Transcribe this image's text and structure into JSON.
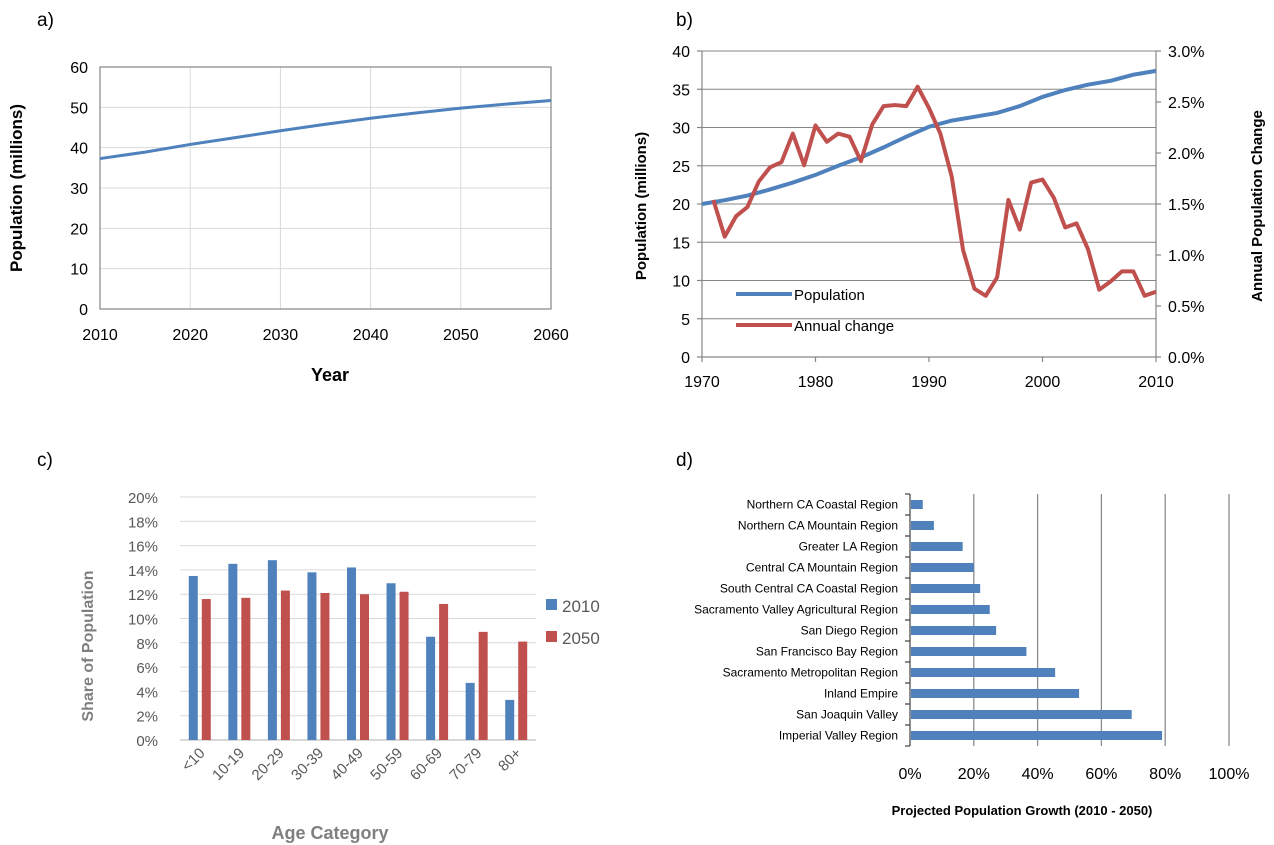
{
  "panels": [
    "a)",
    "b)",
    "c)",
    "d)"
  ],
  "chart_data": [
    {
      "type": "line",
      "xlabel": "Year",
      "ylabel": "Population (millions)",
      "xlim": [
        2010,
        2060
      ],
      "ylim": [
        0,
        60
      ],
      "x_ticks": [
        "2010",
        "2020",
        "2030",
        "2040",
        "2050",
        "2060"
      ],
      "y_ticks": [
        "0",
        "10",
        "20",
        "30",
        "40",
        "50",
        "60"
      ],
      "grid": "major both",
      "series": [
        {
          "color": "#4f81bd",
          "x": [
            2010,
            2015,
            2020,
            2025,
            2030,
            2035,
            2040,
            2045,
            2050,
            2055,
            2060
          ],
          "values": [
            37.3,
            38.9,
            40.8,
            42.5,
            44.2,
            45.8,
            47.3,
            48.6,
            49.8,
            50.8,
            51.7
          ]
        }
      ]
    },
    {
      "type": "line",
      "ylabel": "Population (millions)",
      "ylabel_right": "Annual Population Change",
      "xlim": [
        1970,
        2010
      ],
      "ylim": [
        0,
        40
      ],
      "ylim_right": [
        0,
        3
      ],
      "x_ticks": [
        "1970",
        "1980",
        "1990",
        "2000",
        "2010"
      ],
      "y_ticks": [
        "0",
        "5",
        "10",
        "15",
        "20",
        "25",
        "30",
        "35",
        "40"
      ],
      "y_ticks_right": [
        "0.0%",
        "0.5%",
        "1.0%",
        "1.5%",
        "2.0%",
        "2.5%",
        "3.0%"
      ],
      "legend_position": "lower-left",
      "series": [
        {
          "name": "Population",
          "axis": "left",
          "color": "#4f81bd",
          "x": [
            1970,
            1972,
            1974,
            1976,
            1978,
            1980,
            1982,
            1984,
            1986,
            1988,
            1990,
            1992,
            1994,
            1996,
            1998,
            2000,
            2002,
            2004,
            2006,
            2008,
            2010
          ],
          "values": [
            20.0,
            20.5,
            21.1,
            21.9,
            22.8,
            23.8,
            25.0,
            26.1,
            27.4,
            28.8,
            30.1,
            30.9,
            31.4,
            31.9,
            32.8,
            34.0,
            34.9,
            35.6,
            36.1,
            36.9,
            37.4
          ]
        },
        {
          "name": "Annual change",
          "axis": "right",
          "color": "#c0504d",
          "x": [
            1971,
            1972,
            1973,
            1974,
            1975,
            1976,
            1977,
            1978,
            1979,
            1980,
            1981,
            1982,
            1983,
            1984,
            1985,
            1986,
            1987,
            1988,
            1989,
            1990,
            1991,
            1992,
            1993,
            1994,
            1995,
            1996,
            1997,
            1998,
            1999,
            2000,
            2001,
            2002,
            2003,
            2004,
            2005,
            2006,
            2007,
            2008,
            2009,
            2010
          ],
          "values": [
            0.0154,
            0.0118,
            0.0138,
            0.0147,
            0.0172,
            0.0186,
            0.0191,
            0.0219,
            0.0188,
            0.0227,
            0.0211,
            0.0219,
            0.0216,
            0.0192,
            0.0228,
            0.0246,
            0.0247,
            0.0246,
            0.0265,
            0.0244,
            0.0219,
            0.0177,
            0.0105,
            0.0067,
            0.006,
            0.0078,
            0.0154,
            0.0125,
            0.0171,
            0.0174,
            0.0156,
            0.0127,
            0.0131,
            0.0106,
            0.0066,
            0.0074,
            0.0084,
            0.0084,
            0.006,
            0.0064
          ]
        }
      ]
    },
    {
      "type": "bar",
      "xlabel": "Age Category",
      "ylabel": "Share of Population",
      "ylim": [
        0,
        0.2
      ],
      "y_ticks": [
        "0%",
        "2%",
        "4%",
        "6%",
        "8%",
        "10%",
        "12%",
        "14%",
        "16%",
        "18%",
        "20%"
      ],
      "categories": [
        "<10",
        "10-19",
        "20-29",
        "30-39",
        "40-49",
        "50-59",
        "60-69",
        "70-79",
        "80+"
      ],
      "legend_position": "right",
      "series": [
        {
          "name": "2010",
          "color": "#4f81bd",
          "values": [
            0.135,
            0.145,
            0.148,
            0.138,
            0.142,
            0.129,
            0.085,
            0.047,
            0.033
          ]
        },
        {
          "name": "2050",
          "color": "#c0504d",
          "values": [
            0.116,
            0.117,
            0.123,
            0.121,
            0.12,
            0.122,
            0.112,
            0.089,
            0.081
          ]
        }
      ]
    },
    {
      "type": "bar",
      "orientation": "horizontal",
      "xlabel": "Projected Population Growth (2010 - 2050)",
      "xlim": [
        0,
        1
      ],
      "x_ticks": [
        "0%",
        "20%",
        "40%",
        "60%",
        "80%",
        "100%"
      ],
      "categories": [
        "Northern CA Coastal Region",
        "Northern CA Mountain Region",
        "Greater LA Region",
        "Central CA Mountain Region",
        "South Central CA Coastal Region",
        "Sacramento Valley Agricultural Region",
        "San Diego Region",
        "San Francisco Bay Region",
        "Sacramento Metropolitan Region",
        "Inland Empire",
        "San Joaquin Valley",
        "Imperial Valley Region"
      ],
      "series": [
        {
          "color": "#4f81bd",
          "values": [
            0.04,
            0.075,
            0.165,
            0.2,
            0.22,
            0.25,
            0.27,
            0.365,
            0.455,
            0.53,
            0.695,
            0.79
          ]
        }
      ]
    }
  ]
}
